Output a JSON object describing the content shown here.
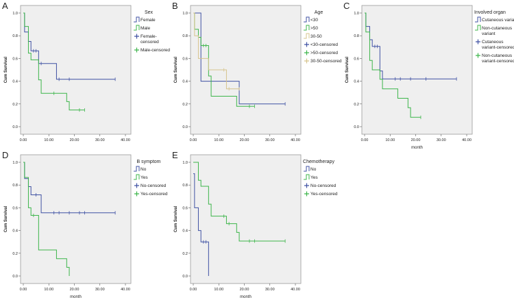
{
  "colors": {
    "blue": "#3f51a3",
    "green": "#3cb54a",
    "tan": "#d6c48c",
    "frame_bg": "#efefef",
    "frame_border": "#9a9a9a"
  },
  "chart_data": [
    {
      "type": "line",
      "panel": "A",
      "title": "Sex",
      "xlabel": "",
      "ylabel": "Cum Survival",
      "xlim": [
        0,
        40
      ],
      "ylim": [
        0,
        1
      ],
      "xticks": [
        "0.00",
        "10.00",
        "20.00",
        "30.00",
        "40.00"
      ],
      "yticks": [
        "0.0",
        "0.2",
        "0.4",
        "0.6",
        "0.8",
        "1.0"
      ],
      "series": [
        {
          "name": "Female",
          "color": "blue",
          "steps": [
            [
              0,
              1
            ],
            [
              0.5,
              0.833
            ],
            [
              2,
              0.75
            ],
            [
              3,
              0.667
            ],
            [
              6,
              0.556
            ],
            [
              13,
              0.417
            ]
          ],
          "end": 36,
          "censored": [
            4,
            5,
            7,
            14,
            18,
            36
          ]
        },
        {
          "name": "Male",
          "color": "green",
          "steps": [
            [
              0,
              1
            ],
            [
              0.5,
              0.882
            ],
            [
              2,
              0.647
            ],
            [
              3,
              0.588
            ],
            [
              6,
              0.412
            ],
            [
              7,
              0.294
            ],
            [
              17,
              0.221
            ],
            [
              18,
              0.147
            ]
          ],
          "end": 24,
          "censored": [
            12,
            22,
            24
          ]
        }
      ],
      "legend": [
        {
          "kind": "step",
          "color": "blue",
          "lines": [
            "Female"
          ]
        },
        {
          "kind": "step",
          "color": "green",
          "lines": [
            "Male"
          ]
        },
        {
          "kind": "plus",
          "color": "blue",
          "lines": [
            "Female-",
            "censored"
          ]
        },
        {
          "kind": "plus",
          "color": "green",
          "lines": [
            "Male-censored"
          ]
        }
      ]
    },
    {
      "type": "line",
      "panel": "B",
      "title": "Age",
      "xlabel": "",
      "ylabel": "Cum Survival",
      "xlim": [
        0,
        40
      ],
      "ylim": [
        0,
        1
      ],
      "xticks": [
        "0.00",
        "10.00",
        "20.00",
        "30.00",
        "40.00"
      ],
      "yticks": [
        "0.0",
        "0.2",
        "0.4",
        "0.6",
        "0.8",
        "1.0"
      ],
      "series": [
        {
          "name": "<30",
          "color": "blue",
          "steps": [
            [
              0,
              1
            ],
            [
              3,
              0.4
            ],
            [
              18,
              0.2
            ]
          ],
          "end": 36,
          "censored": [
            36
          ]
        },
        {
          "name": ">50",
          "color": "green",
          "steps": [
            [
              0,
              1
            ],
            [
              0.5,
              0.857
            ],
            [
              2,
              0.786
            ],
            [
              3,
              0.714
            ],
            [
              6,
              0.446
            ],
            [
              7,
              0.268
            ],
            [
              17,
              0.179
            ]
          ],
          "end": 24,
          "censored": [
            4,
            5,
            22,
            24
          ]
        },
        {
          "name": "30-50",
          "color": "tan",
          "steps": [
            [
              0,
              1
            ],
            [
              0.5,
              0.8
            ],
            [
              2,
              0.6
            ],
            [
              6,
              0.5
            ],
            [
              13,
              0.333
            ]
          ],
          "end": 18,
          "censored": [
            12,
            14,
            18
          ]
        }
      ],
      "legend": [
        {
          "kind": "step",
          "color": "blue",
          "lines": [
            "<30"
          ]
        },
        {
          "kind": "step",
          "color": "green",
          "lines": [
            ">50"
          ]
        },
        {
          "kind": "step",
          "color": "tan",
          "lines": [
            "30-50"
          ]
        },
        {
          "kind": "plus",
          "color": "blue",
          "lines": [
            "<30-censored"
          ]
        },
        {
          "kind": "plus",
          "color": "green",
          "lines": [
            ">50-censored"
          ]
        },
        {
          "kind": "plus",
          "color": "tan",
          "lines": [
            "30-50-censored"
          ]
        }
      ]
    },
    {
      "type": "line",
      "panel": "C",
      "title": "Involved organ",
      "xlabel": "month",
      "ylabel": "Cum Survival",
      "xlim": [
        0,
        40
      ],
      "ylim": [
        0,
        1
      ],
      "xticks": [
        "0.00",
        "10.00",
        "20.00",
        "30.00",
        "40.00"
      ],
      "yticks": [
        "0.0",
        "0.2",
        "0.4",
        "0.6",
        "0.8",
        "1.0"
      ],
      "series": [
        {
          "name": "Cutaneous variant",
          "color": "blue",
          "steps": [
            [
              0,
              1
            ],
            [
              0.5,
              0.882
            ],
            [
              2,
              0.765
            ],
            [
              3,
              0.706
            ],
            [
              6,
              0.49
            ],
            [
              7,
              0.42
            ]
          ],
          "end": 36,
          "censored": [
            4,
            5,
            12,
            14,
            18,
            24,
            36
          ]
        },
        {
          "name": "Non-cutaneous variant",
          "color": "green",
          "steps": [
            [
              0,
              1
            ],
            [
              0.5,
              0.833
            ],
            [
              2,
              0.583
            ],
            [
              3,
              0.5
            ],
            [
              6,
              0.417
            ],
            [
              7,
              0.333
            ],
            [
              13,
              0.25
            ],
            [
              17,
              0.167
            ],
            [
              18,
              0.083
            ]
          ],
          "end": 22,
          "censored": [
            22
          ]
        }
      ],
      "legend": [
        {
          "kind": "step",
          "color": "blue",
          "lines": [
            "Cutaneous variant"
          ]
        },
        {
          "kind": "step",
          "color": "green",
          "lines": [
            "Non-cutaneous",
            "variant"
          ]
        },
        {
          "kind": "plus",
          "color": "blue",
          "lines": [
            "Cutaneous",
            "variant-censored"
          ]
        },
        {
          "kind": "plus",
          "color": "green",
          "lines": [
            "Non-cutaneous",
            "variant-censored"
          ]
        }
      ]
    },
    {
      "type": "line",
      "panel": "D",
      "title": "B symptom",
      "xlabel": "month",
      "ylabel": "Cum Survival",
      "xlim": [
        0,
        40
      ],
      "ylim": [
        0,
        1
      ],
      "xticks": [
        "0.00",
        "10.00",
        "20.00",
        "30.00",
        "40.00"
      ],
      "yticks": [
        "0.0",
        "0.2",
        "0.4",
        "0.6",
        "0.8",
        "1.0"
      ],
      "series": [
        {
          "name": "No",
          "color": "blue",
          "steps": [
            [
              0,
              1
            ],
            [
              0.5,
              0.857
            ],
            [
              2,
              0.786
            ],
            [
              3,
              0.714
            ],
            [
              7,
              0.556
            ]
          ],
          "end": 36,
          "censored": [
            5,
            12,
            14,
            18,
            22,
            24,
            36
          ]
        },
        {
          "name": "Yes",
          "color": "green",
          "steps": [
            [
              0,
              1
            ],
            [
              0.5,
              0.867
            ],
            [
              2,
              0.6
            ],
            [
              3,
              0.533
            ],
            [
              6,
              0.229
            ],
            [
              13,
              0.152
            ],
            [
              17,
              0.076
            ],
            [
              18,
              0
            ]
          ],
          "end": 18,
          "censored": [
            4
          ]
        }
      ],
      "legend": [
        {
          "kind": "step",
          "color": "blue",
          "lines": [
            "No"
          ]
        },
        {
          "kind": "step",
          "color": "green",
          "lines": [
            "Yes"
          ]
        },
        {
          "kind": "plus",
          "color": "blue",
          "lines": [
            "No-censored"
          ]
        },
        {
          "kind": "plus",
          "color": "green",
          "lines": [
            "Yes-censored"
          ]
        }
      ]
    },
    {
      "type": "line",
      "panel": "E",
      "title": "Chemotherapy",
      "xlabel": "month",
      "ylabel": "Cum Survival",
      "xlim": [
        0,
        40
      ],
      "ylim": [
        0,
        1
      ],
      "xticks": [
        "0.00",
        "10.00",
        "20.00",
        "30.00",
        "40.00"
      ],
      "yticks": [
        "0.0",
        "0.2",
        "0.4",
        "0.6",
        "0.8",
        "1.0"
      ],
      "series": [
        {
          "name": "No",
          "color": "blue",
          "steps": [
            [
              0,
              0.9
            ],
            [
              0.5,
              0.6
            ],
            [
              2,
              0.4
            ],
            [
              3,
              0.3
            ],
            [
              6,
              0
            ]
          ],
          "end": 6,
          "censored": [
            4,
            5
          ]
        },
        {
          "name": "Yes",
          "color": "green",
          "steps": [
            [
              0,
              1
            ],
            [
              2,
              0.842
            ],
            [
              3,
              0.789
            ],
            [
              6,
              0.632
            ],
            [
              7,
              0.526
            ],
            [
              13,
              0.46
            ],
            [
              17,
              0.383
            ],
            [
              18,
              0.307
            ]
          ],
          "end": 36,
          "censored": [
            12,
            14,
            22,
            24,
            36
          ]
        }
      ],
      "legend": [
        {
          "kind": "step",
          "color": "blue",
          "lines": [
            "No"
          ]
        },
        {
          "kind": "step",
          "color": "green",
          "lines": [
            "Yes"
          ]
        },
        {
          "kind": "plus",
          "color": "blue",
          "lines": [
            "No-censored"
          ]
        },
        {
          "kind": "plus",
          "color": "green",
          "lines": [
            "Yes-censored"
          ]
        }
      ]
    }
  ]
}
